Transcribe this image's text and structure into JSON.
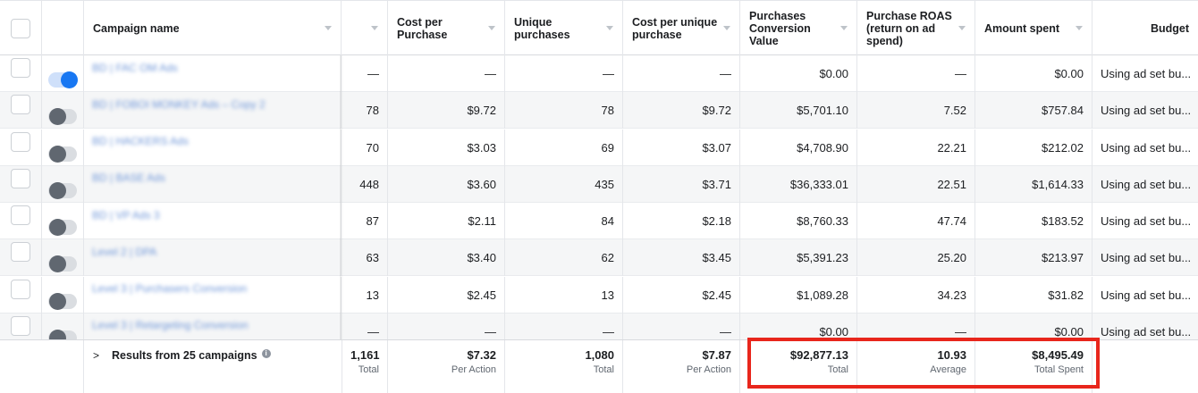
{
  "header": {
    "campaign_name": "Campaign name",
    "col_results": "",
    "cost_per_purchase": "Cost per Purchase",
    "unique_purchases": "Unique purchases",
    "cost_per_unique": "Cost per unique purchase",
    "conversion_value": "Purchases Conversion Value",
    "roas": "Purchase ROAS (return on ad spend)",
    "amount_spent": "Amount spent",
    "budget": "Budget"
  },
  "rows": [
    {
      "name": "BD | FAC OM Ads",
      "on": true,
      "purchases": "—",
      "cpp": "—",
      "unique": "—",
      "cpu": "—",
      "value": "$0.00",
      "roas": "—",
      "spent": "$0.00",
      "budget": "Using ad set bu..."
    },
    {
      "name": "BD | FOBOI MONKEY Ads – Copy 2",
      "on": false,
      "purchases": "78",
      "cpp": "$9.72",
      "unique": "78",
      "cpu": "$9.72",
      "value": "$5,701.10",
      "roas": "7.52",
      "spent": "$757.84",
      "budget": "Using ad set bu..."
    },
    {
      "name": "BD | HACKERS Ads",
      "on": false,
      "purchases": "70",
      "cpp": "$3.03",
      "unique": "69",
      "cpu": "$3.07",
      "value": "$4,708.90",
      "roas": "22.21",
      "spent": "$212.02",
      "budget": "Using ad set bu..."
    },
    {
      "name": "BD | BASE Ads",
      "on": false,
      "purchases": "448",
      "cpp": "$3.60",
      "unique": "435",
      "cpu": "$3.71",
      "value": "$36,333.01",
      "roas": "22.51",
      "spent": "$1,614.33",
      "budget": "Using ad set bu..."
    },
    {
      "name": "BD | VP Ads 3",
      "on": false,
      "purchases": "87",
      "cpp": "$2.11",
      "unique": "84",
      "cpu": "$2.18",
      "value": "$8,760.33",
      "roas": "47.74",
      "spent": "$183.52",
      "budget": "Using ad set bu..."
    },
    {
      "name": "Level 2 | DPA",
      "on": false,
      "purchases": "63",
      "cpp": "$3.40",
      "unique": "62",
      "cpu": "$3.45",
      "value": "$5,391.23",
      "roas": "25.20",
      "spent": "$213.97",
      "budget": "Using ad set bu..."
    },
    {
      "name": "Level 3 | Purchasers Conversion",
      "on": false,
      "purchases": "13",
      "cpp": "$2.45",
      "unique": "13",
      "cpu": "$2.45",
      "value": "$1,089.28",
      "roas": "34.23",
      "spent": "$31.82",
      "budget": "Using ad set bu..."
    },
    {
      "name": "Level 3 | Retargeting Conversion",
      "on": false,
      "purchases": "—",
      "cpp": "—",
      "unique": "—",
      "cpu": "—",
      "value": "$0.00",
      "roas": "—",
      "spent": "$0.00",
      "budget": "Using ad set bu..."
    }
  ],
  "footer": {
    "chevron": ">",
    "label": "Results from 25 campaigns",
    "info": "i",
    "purchases": "1,161",
    "purchases_sub": "Total",
    "cpp": "$7.32",
    "cpp_sub": "Per Action",
    "unique": "1,080",
    "unique_sub": "Total",
    "cpu": "$7.87",
    "cpu_sub": "Per Action",
    "value": "$92,877.13",
    "value_sub": "Total",
    "roas": "10.93",
    "roas_sub": "Average",
    "spent": "$8,495.49",
    "spent_sub": "Total Spent"
  },
  "colors": {
    "highlight": "#e8261c",
    "toggle_on": "#1877f2",
    "toggle_off": "#606770"
  }
}
